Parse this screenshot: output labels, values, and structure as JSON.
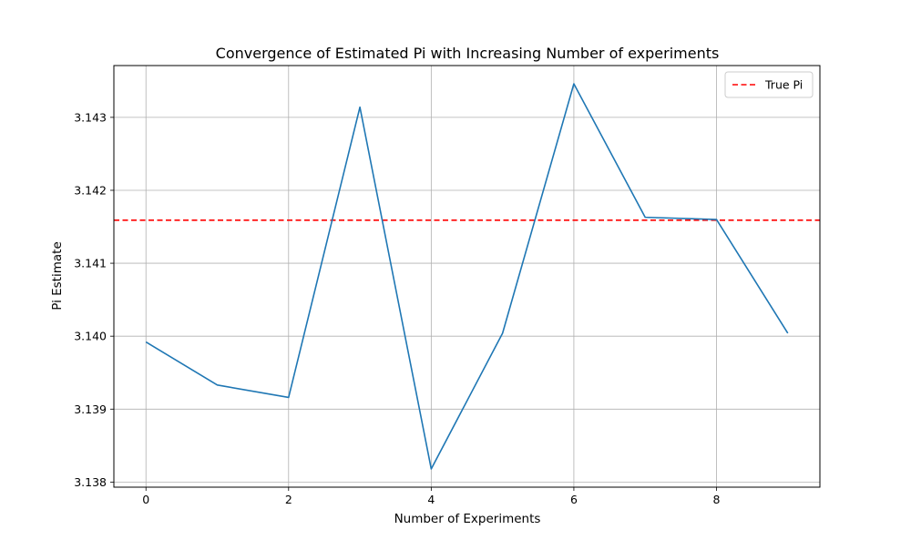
{
  "chart_data": {
    "type": "line",
    "title": "Convergence of Estimated Pi with Increasing Number of experiments",
    "xlabel": "Number of Experiments",
    "ylabel": "Pi Estimate",
    "x": [
      0,
      1,
      2,
      3,
      4,
      5,
      6,
      7,
      8,
      9
    ],
    "series": [
      {
        "values": [
          3.13992,
          3.13933,
          3.13916,
          3.14314,
          3.13818,
          3.14004,
          3.14346,
          3.14163,
          3.1416,
          3.14004
        ],
        "color": "#1f77b4",
        "style": "solid"
      }
    ],
    "reference_line": {
      "name": "True Pi",
      "value": 3.14159,
      "color": "#ff0000",
      "style": "dashed"
    },
    "xticks": [
      0,
      2,
      4,
      6,
      8
    ],
    "xtick_labels": [
      "0",
      "2",
      "4",
      "6",
      "8"
    ],
    "yticks": [
      3.138,
      3.139,
      3.14,
      3.141,
      3.142,
      3.143
    ],
    "ytick_labels": [
      "3.138",
      "3.139",
      "3.140",
      "3.141",
      "3.142",
      "3.143"
    ],
    "xlim": [
      -0.45,
      9.45
    ],
    "ylim": [
      3.13793,
      3.14371
    ],
    "grid": true,
    "legend": {
      "position": "top-right",
      "entries": [
        "True Pi"
      ]
    }
  }
}
